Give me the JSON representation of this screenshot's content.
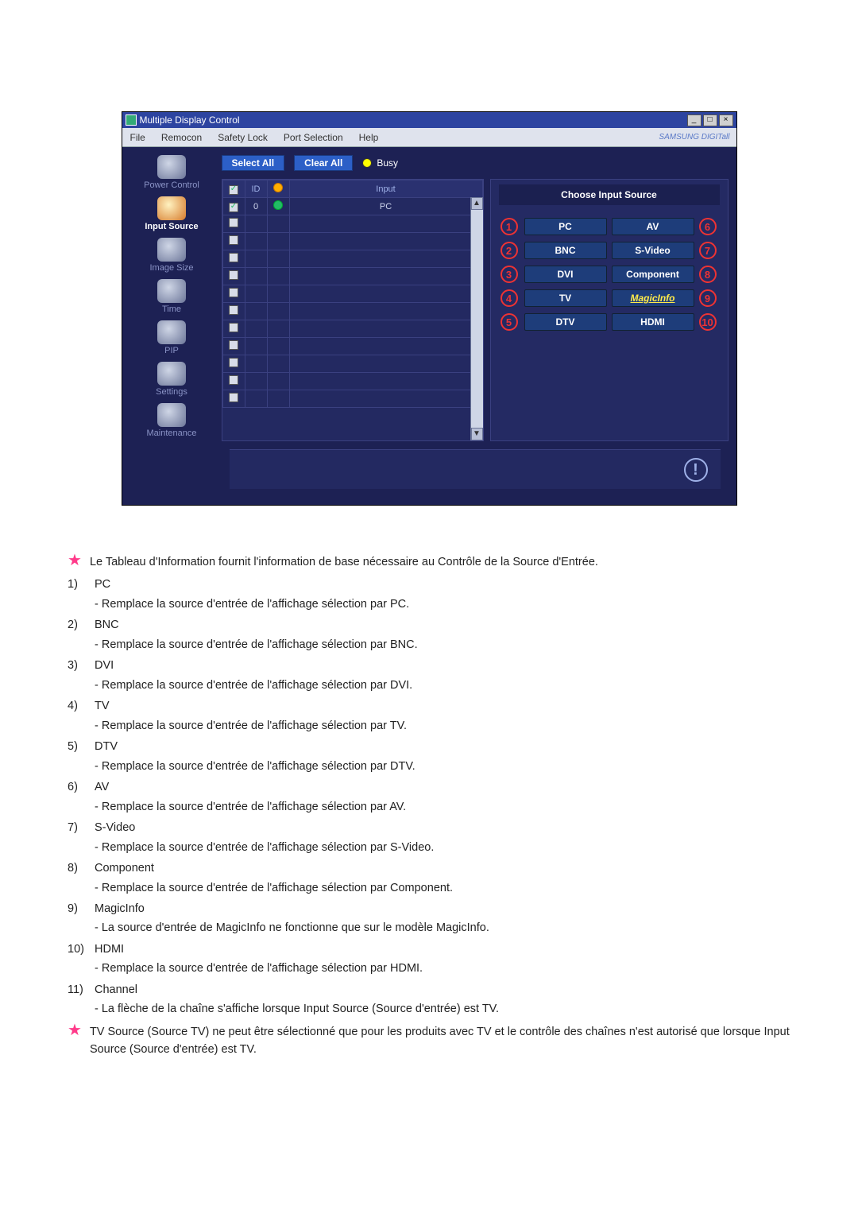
{
  "titlebar": {
    "title": "Multiple Display Control"
  },
  "menu": {
    "file": "File",
    "remocon": "Remocon",
    "safety": "Safety Lock",
    "port": "Port Selection",
    "help": "Help",
    "brand": "SAMSUNG DIGITall"
  },
  "sidebar": {
    "items": [
      {
        "label": "Power Control"
      },
      {
        "label": "Input Source"
      },
      {
        "label": "Image Size"
      },
      {
        "label": "Time"
      },
      {
        "label": "PIP"
      },
      {
        "label": "Settings"
      },
      {
        "label": "Maintenance"
      }
    ]
  },
  "toolbar": {
    "selectAll": "Select All",
    "clearAll": "Clear All",
    "busy": "Busy"
  },
  "grid": {
    "cols": {
      "chk": "✓",
      "id": "ID",
      "st": "",
      "input": "Input"
    },
    "rows": [
      {
        "chk": true,
        "id": "0",
        "on": true,
        "input": "PC"
      }
    ],
    "blankRows": 11
  },
  "panel": {
    "title": "Choose Input Source",
    "left": [
      {
        "n": "1",
        "l": "PC"
      },
      {
        "n": "2",
        "l": "BNC"
      },
      {
        "n": "3",
        "l": "DVI"
      },
      {
        "n": "4",
        "l": "TV"
      },
      {
        "n": "5",
        "l": "DTV"
      }
    ],
    "right": [
      {
        "n": "6",
        "l": "AV"
      },
      {
        "n": "7",
        "l": "S-Video"
      },
      {
        "n": "8",
        "l": "Component"
      },
      {
        "n": "9",
        "l": "MagicInfo",
        "yellow": true
      },
      {
        "n": "10",
        "l": "HDMI"
      }
    ]
  },
  "explain": {
    "intro": "Le Tableau d'Information fournit l'information de base nécessaire au Contrôle de la Source d'Entrée.",
    "items": [
      {
        "n": "1)",
        "t": "PC",
        "d": "- Remplace la source d'entrée de l'affichage sélection par PC."
      },
      {
        "n": "2)",
        "t": "BNC",
        "d": "- Remplace la source d'entrée de l'affichage sélection par BNC."
      },
      {
        "n": "3)",
        "t": "DVI",
        "d": "- Remplace la source d'entrée de l'affichage sélection par DVI."
      },
      {
        "n": "4)",
        "t": "TV",
        "d": "- Remplace la source d'entrée de l'affichage sélection par TV."
      },
      {
        "n": "5)",
        "t": "DTV",
        "d": "- Remplace la source d'entrée de l'affichage sélection par DTV."
      },
      {
        "n": "6)",
        "t": "AV",
        "d": "- Remplace la source d'entrée de l'affichage sélection par AV."
      },
      {
        "n": "7)",
        "t": "S-Video",
        "d": "- Remplace la source d'entrée de l'affichage sélection par S-Video."
      },
      {
        "n": "8)",
        "t": "Component",
        "d": "- Remplace la source d'entrée de l'affichage sélection par Component."
      },
      {
        "n": "9)",
        "t": "MagicInfo",
        "d": "- La source d'entrée de MagicInfo ne fonctionne que sur le modèle MagicInfo."
      },
      {
        "n": "10)",
        "t": "HDMI",
        "d": "- Remplace la source d'entrée de l'affichage sélection par HDMI."
      },
      {
        "n": "11)",
        "t": "Channel",
        "d": "- La flèche de la chaîne s'affiche lorsque Input Source (Source d'entrée) est TV."
      }
    ],
    "note": "TV Source (Source TV) ne peut être sélectionné que pour les produits avec TV et le contrôle des chaînes n'est autorisé que lorsque Input Source (Source d'entrée) est TV."
  }
}
